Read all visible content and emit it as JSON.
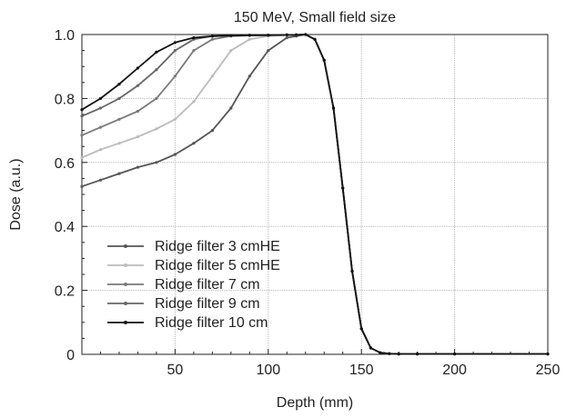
{
  "chart_data": {
    "type": "line",
    "title": "150 MeV, Small field size",
    "xlabel": "Depth (mm)",
    "ylabel": "Dose (a.u.)",
    "xlim": [
      0,
      250
    ],
    "ylim": [
      0,
      1.0
    ],
    "xticks": [
      50,
      100,
      150,
      200,
      250
    ],
    "xtick_labels": [
      "50",
      "100",
      "150",
      "200",
      "250"
    ],
    "yticks": [
      0,
      0.2,
      0.4,
      0.6,
      0.8,
      1.0
    ],
    "ytick_labels": [
      "0",
      "0.2",
      "0.4",
      "0.6",
      "0.8",
      "1.0"
    ],
    "grid": true,
    "legend_position": "lower-left",
    "series": [
      {
        "name": "Ridge filter 3 cmHE",
        "color": "#555555",
        "marker": "dot",
        "x": [
          0,
          10,
          20,
          30,
          40,
          50,
          60,
          70,
          80,
          90,
          100,
          110,
          115,
          120,
          125,
          130,
          135,
          140,
          145,
          150,
          155,
          160,
          165,
          170,
          180,
          200,
          250
        ],
        "y": [
          0.525,
          0.545,
          0.565,
          0.585,
          0.6,
          0.625,
          0.66,
          0.7,
          0.77,
          0.87,
          0.95,
          0.99,
          0.995,
          1.0,
          0.985,
          0.92,
          0.77,
          0.52,
          0.26,
          0.08,
          0.02,
          0.005,
          0.002,
          0.001,
          0.001,
          0.001,
          0.001
        ]
      },
      {
        "name": "Ridge filter 5 cmHE",
        "color": "#bbbbbb",
        "marker": "dot",
        "x": [
          0,
          10,
          20,
          30,
          40,
          50,
          60,
          70,
          80,
          90,
          100,
          110,
          115,
          120,
          125,
          130,
          135,
          140,
          145,
          150,
          155,
          160,
          165,
          170,
          180,
          200,
          250
        ],
        "y": [
          0.615,
          0.64,
          0.66,
          0.68,
          0.705,
          0.735,
          0.79,
          0.87,
          0.95,
          0.985,
          0.995,
          0.998,
          0.999,
          1.0,
          0.985,
          0.92,
          0.77,
          0.52,
          0.26,
          0.08,
          0.02,
          0.005,
          0.002,
          0.001,
          0.001,
          0.001,
          0.001
        ]
      },
      {
        "name": "Ridge filter 7 cm",
        "color": "#7a7a7a",
        "marker": "dash",
        "x": [
          0,
          10,
          20,
          30,
          40,
          50,
          60,
          70,
          80,
          90,
          100,
          110,
          115,
          120,
          125,
          130,
          135,
          140,
          145,
          150,
          155,
          160,
          165,
          170,
          180,
          200,
          250
        ],
        "y": [
          0.685,
          0.71,
          0.735,
          0.76,
          0.8,
          0.87,
          0.95,
          0.985,
          0.995,
          0.997,
          0.998,
          0.999,
          0.999,
          1.0,
          0.985,
          0.92,
          0.77,
          0.52,
          0.26,
          0.08,
          0.02,
          0.005,
          0.002,
          0.001,
          0.001,
          0.001,
          0.001
        ]
      },
      {
        "name": "Ridge filter 9 cm",
        "color": "#666666",
        "marker": "dot",
        "x": [
          0,
          10,
          20,
          30,
          40,
          50,
          60,
          70,
          80,
          90,
          100,
          110,
          115,
          120,
          125,
          130,
          135,
          140,
          145,
          150,
          155,
          160,
          165,
          170,
          180,
          200,
          250
        ],
        "y": [
          0.745,
          0.77,
          0.8,
          0.84,
          0.89,
          0.95,
          0.985,
          0.995,
          0.997,
          0.998,
          0.998,
          0.999,
          0.999,
          1.0,
          0.985,
          0.92,
          0.77,
          0.52,
          0.26,
          0.08,
          0.02,
          0.005,
          0.002,
          0.001,
          0.001,
          0.001,
          0.001
        ]
      },
      {
        "name": "Ridge filter 10 cm",
        "color": "#111111",
        "marker": "dot",
        "x": [
          0,
          10,
          20,
          30,
          40,
          50,
          60,
          70,
          80,
          90,
          100,
          110,
          115,
          120,
          125,
          130,
          135,
          140,
          145,
          150,
          155,
          160,
          165,
          170,
          180,
          200,
          250
        ],
        "y": [
          0.765,
          0.8,
          0.845,
          0.895,
          0.945,
          0.975,
          0.99,
          0.995,
          0.997,
          0.998,
          0.998,
          0.999,
          0.999,
          1.0,
          0.985,
          0.92,
          0.77,
          0.52,
          0.26,
          0.08,
          0.02,
          0.005,
          0.002,
          0.001,
          0.001,
          0.001,
          0.001
        ]
      }
    ]
  }
}
